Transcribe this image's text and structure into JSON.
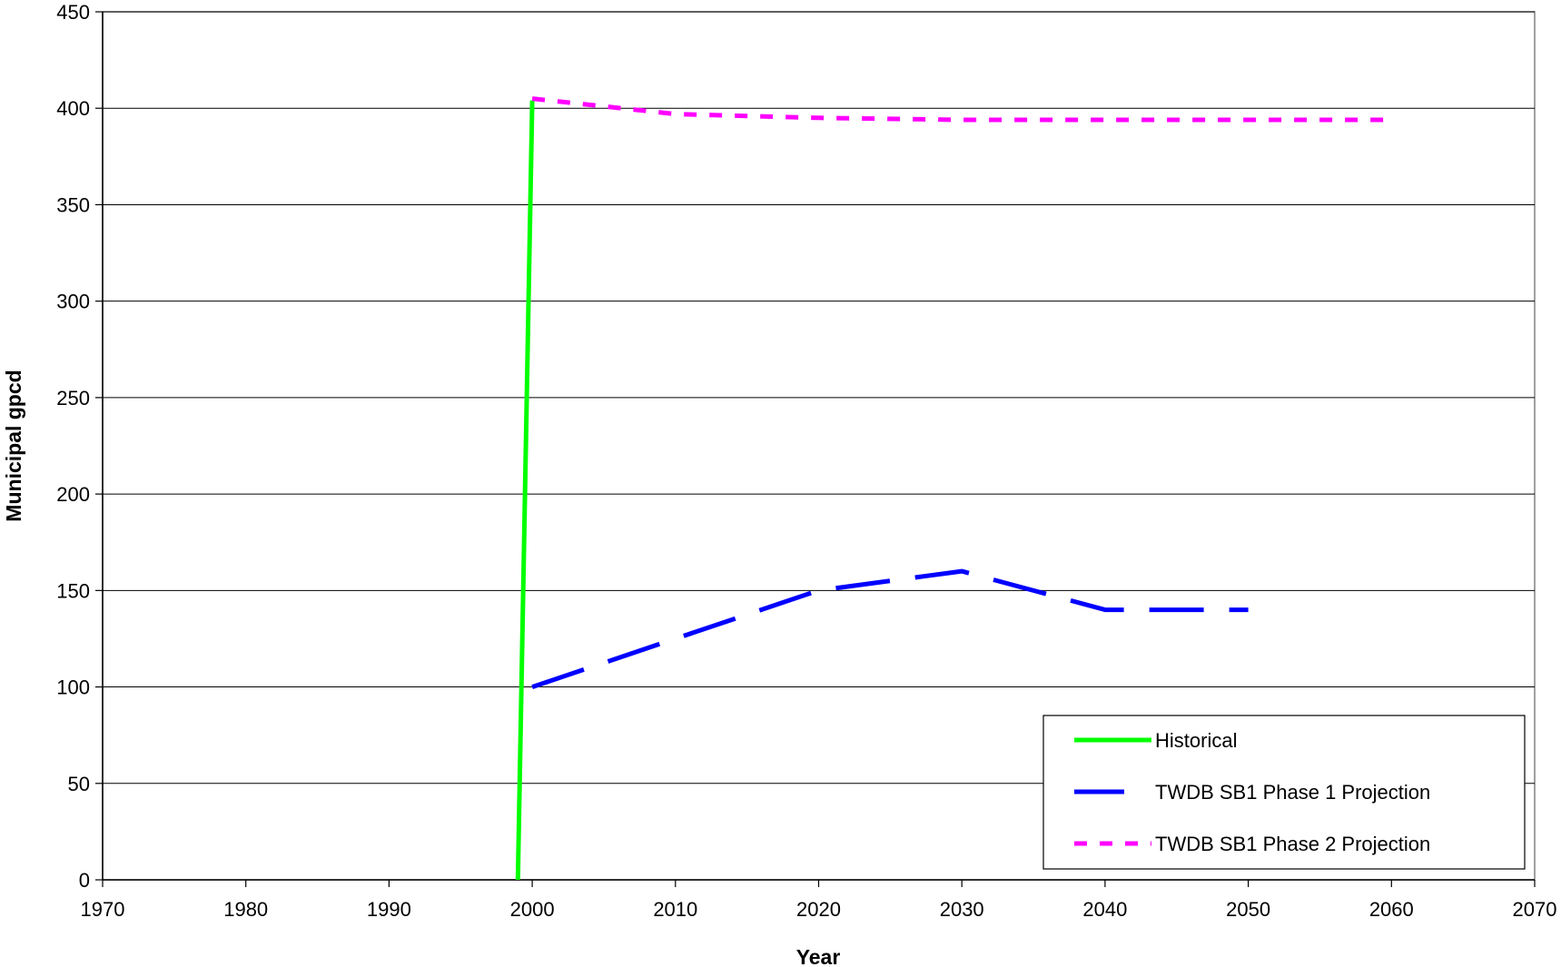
{
  "chart_data": {
    "type": "line",
    "title": "",
    "xlabel": "Year",
    "ylabel": "Municipal gpcd",
    "xlim": [
      1970,
      2070
    ],
    "ylim": [
      0,
      450
    ],
    "xticks": [
      1970,
      1980,
      1990,
      2000,
      2010,
      2020,
      2030,
      2040,
      2050,
      2060,
      2070
    ],
    "yticks": [
      0,
      50,
      100,
      150,
      200,
      250,
      300,
      350,
      400,
      450
    ],
    "grid": "horizontal",
    "legend_position": "bottom-right",
    "series": [
      {
        "name": "Historical",
        "color": "#00ff00",
        "style": "solid",
        "points": [
          [
            1999,
            0
          ],
          [
            2000,
            404
          ]
        ]
      },
      {
        "name": "TWDB SB1 Phase 1 Projection",
        "color": "#0000ff",
        "style": "long-dash",
        "points": [
          [
            2000,
            100
          ],
          [
            2010,
            125
          ],
          [
            2020,
            150
          ],
          [
            2030,
            160
          ],
          [
            2040,
            140
          ],
          [
            2050,
            140
          ]
        ]
      },
      {
        "name": "TWDB SB1 Phase 2 Projection",
        "color": "#ff00ff",
        "style": "short-dash",
        "points": [
          [
            2000,
            405
          ],
          [
            2010,
            397
          ],
          [
            2020,
            395
          ],
          [
            2030,
            394
          ],
          [
            2040,
            394
          ],
          [
            2050,
            394
          ],
          [
            2060,
            394
          ]
        ]
      }
    ]
  }
}
